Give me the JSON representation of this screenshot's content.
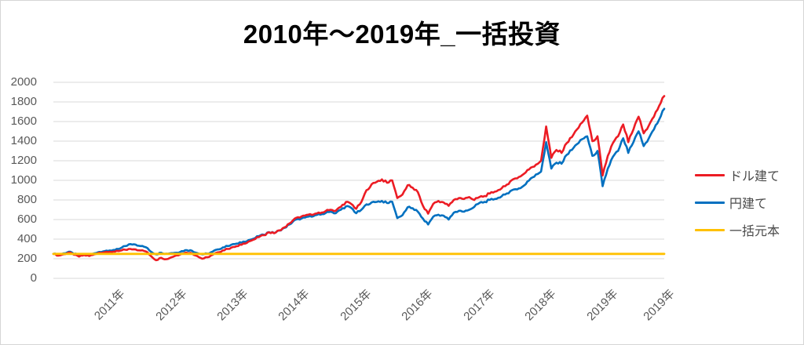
{
  "chart_data": {
    "type": "line",
    "title": "2010年～2019年_一括投資",
    "legend_position": "right",
    "grid": "horizontal",
    "y_axis": {
      "min": 0,
      "max": 2000,
      "tick_step": 200,
      "ticks": [
        0,
        200,
        400,
        600,
        800,
        1000,
        1200,
        1400,
        1600,
        1800,
        2000
      ]
    },
    "x_axis": {
      "granularity": "monthly",
      "months_total": 120,
      "tick_labels": [
        "2011年",
        "2012年",
        "2013年",
        "2014年",
        "2015年",
        "2016年",
        "2017年",
        "2018年",
        "2019年",
        "2019年"
      ],
      "tick_month_indices": [
        12,
        24,
        36,
        48,
        60,
        72,
        84,
        96,
        108,
        119
      ]
    },
    "series": [
      {
        "name": "ドル建て",
        "color": "#EC1C24",
        "values": [
          250,
          232,
          246,
          264,
          240,
          222,
          238,
          228,
          246,
          262,
          266,
          272,
          272,
          282,
          292,
          300,
          295,
          285,
          275,
          228,
          185,
          210,
          195,
          215,
          235,
          252,
          262,
          255,
          228,
          200,
          215,
          240,
          265,
          285,
          300,
          320,
          330,
          355,
          375,
          395,
          420,
          440,
          470,
          460,
          490,
          520,
          560,
          610,
          620,
          640,
          655,
          660,
          665,
          685,
          700,
          690,
          730,
          780,
          760,
          710,
          780,
          900,
          960,
          985,
          1010,
          975,
          1000,
          820,
          855,
          950,
          925,
          880,
          740,
          660,
          760,
          790,
          775,
          740,
          800,
          820,
          810,
          830,
          800,
          830,
          840,
          865,
          885,
          905,
          940,
          990,
          1020,
          1040,
          1080,
          1130,
          1160,
          1200,
          1550,
          1230,
          1310,
          1280,
          1380,
          1440,
          1520,
          1590,
          1660,
          1400,
          1450,
          1050,
          1250,
          1380,
          1450,
          1570,
          1390,
          1520,
          1650,
          1480,
          1560,
          1650,
          1760,
          1860
        ]
      },
      {
        "name": "円建て",
        "color": "#0070C0",
        "values": [
          250,
          240,
          255,
          272,
          250,
          238,
          248,
          242,
          256,
          270,
          278,
          285,
          290,
          305,
          330,
          350,
          345,
          330,
          318,
          272,
          245,
          262,
          252,
          258,
          262,
          278,
          288,
          282,
          258,
          245,
          252,
          272,
          295,
          315,
          330,
          350,
          355,
          375,
          390,
          405,
          430,
          445,
          472,
          462,
          488,
          515,
          550,
          595,
          600,
          620,
          635,
          645,
          650,
          665,
          680,
          665,
          700,
          735,
          720,
          665,
          700,
          755,
          775,
          780,
          790,
          768,
          782,
          615,
          645,
          725,
          715,
          680,
          610,
          550,
          630,
          650,
          640,
          600,
          670,
          690,
          680,
          700,
          730,
          770,
          780,
          800,
          810,
          825,
          855,
          890,
          910,
          920,
          960,
          1020,
          1060,
          1090,
          1390,
          1120,
          1180,
          1170,
          1260,
          1310,
          1370,
          1420,
          1450,
          1250,
          1300,
          940,
          1120,
          1240,
          1300,
          1430,
          1280,
          1390,
          1500,
          1350,
          1430,
          1520,
          1620,
          1730
        ]
      },
      {
        "name": "一括元本",
        "color": "#FFC000",
        "constant_value": 250
      }
    ],
    "colors": {
      "gridline": "#D9D9D9",
      "axis_text": "#595959",
      "title_text": "#000000",
      "frame_border": "#D6D6D6"
    }
  }
}
